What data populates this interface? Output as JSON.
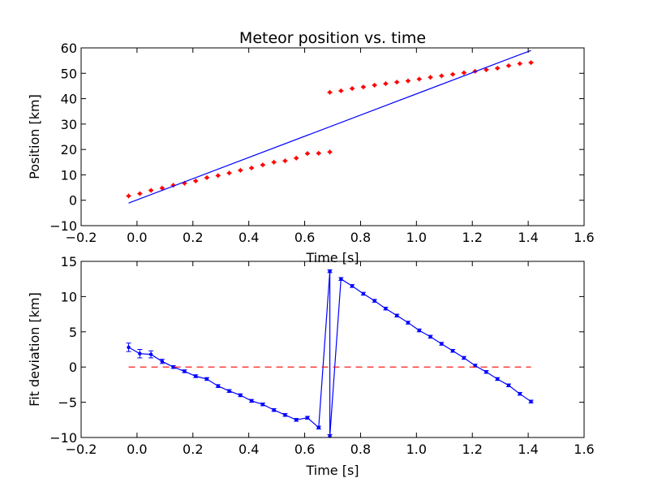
{
  "chart_data": [
    {
      "type": "scatter",
      "title": "Meteor position vs. time",
      "xlabel": "Time [s]",
      "ylabel": "Position [km]",
      "xlim": [
        -0.2,
        1.6
      ],
      "ylim": [
        -10,
        60
      ],
      "xticks": [
        "−0.2",
        "0.0",
        "0.2",
        "0.4",
        "0.6",
        "0.8",
        "1.0",
        "1.2",
        "1.4",
        "1.6"
      ],
      "yticks": [
        "−10",
        "0",
        "10",
        "20",
        "30",
        "40",
        "50",
        "60"
      ],
      "grid": false,
      "colors": {
        "points": "#ff0000",
        "fit": "#0000ff"
      },
      "series": [
        {
          "kind": "points",
          "x": [
            -0.03,
            0.01,
            0.05,
            0.09,
            0.13,
            0.17,
            0.21,
            0.25,
            0.29,
            0.33,
            0.37,
            0.41,
            0.45,
            0.49,
            0.53,
            0.57,
            0.61,
            0.65,
            0.69,
            0.69,
            0.73,
            0.77,
            0.81,
            0.85,
            0.89,
            0.93,
            0.97,
            1.01,
            1.05,
            1.09,
            1.13,
            1.17,
            1.21,
            1.25,
            1.29,
            1.33,
            1.37,
            1.41
          ],
          "y": [
            1.7,
            2.6,
            3.9,
            4.8,
            5.9,
            6.7,
            7.6,
            8.9,
            9.7,
            10.7,
            11.8,
            12.7,
            13.9,
            15.0,
            15.5,
            16.6,
            18.4,
            18.5,
            19.0,
            42.5,
            43.1,
            44.0,
            44.6,
            45.3,
            45.9,
            46.5,
            47.0,
            47.7,
            48.4,
            49.0,
            49.6,
            50.2,
            50.8,
            51.4,
            52.0,
            53.0,
            53.8,
            54.2
          ]
        },
        {
          "kind": "line",
          "x": [
            -0.03,
            1.41
          ],
          "y": [
            -1.1,
            59.0
          ]
        }
      ]
    },
    {
      "type": "line",
      "xlabel": "Time [s]",
      "ylabel": "Fit deviation [km]",
      "xlim": [
        -0.2,
        1.6
      ],
      "ylim": [
        -10,
        15
      ],
      "xticks": [
        "−0.2",
        "0.0",
        "0.2",
        "0.4",
        "0.6",
        "0.8",
        "1.0",
        "1.2",
        "1.4",
        "1.6"
      ],
      "yticks": [
        "−10",
        "−5",
        "0",
        "5",
        "10",
        "15"
      ],
      "grid": false,
      "colors": {
        "deviation": "#0000ff",
        "zero": "#ff0000"
      },
      "series": [
        {
          "kind": "errorline",
          "x": [
            -0.03,
            0.01,
            0.05,
            0.09,
            0.13,
            0.17,
            0.21,
            0.25,
            0.29,
            0.33,
            0.37,
            0.41,
            0.45,
            0.49,
            0.53,
            0.57,
            0.61,
            0.65,
            0.69,
            0.69,
            0.73,
            0.77,
            0.81,
            0.85,
            0.89,
            0.93,
            0.97,
            1.01,
            1.05,
            1.09,
            1.13,
            1.17,
            1.21,
            1.25,
            1.29,
            1.33,
            1.37,
            1.41
          ],
          "y": [
            2.8,
            1.9,
            1.8,
            0.8,
            0.0,
            -0.6,
            -1.3,
            -1.7,
            -2.7,
            -3.4,
            -4.0,
            -4.8,
            -5.3,
            -6.1,
            -6.8,
            -7.5,
            -7.2,
            -8.6,
            13.6,
            -9.8,
            12.5,
            11.5,
            10.4,
            9.4,
            8.3,
            7.3,
            6.3,
            5.2,
            4.3,
            3.3,
            2.3,
            1.3,
            0.2,
            -0.7,
            -1.7,
            -2.6,
            -3.8,
            -4.9
          ],
          "err": [
            0.6,
            0.6,
            0.5,
            0.3,
            0.2,
            0.2,
            0.2,
            0.2,
            0.2,
            0.2,
            0.2,
            0.2,
            0.2,
            0.2,
            0.2,
            0.2,
            0.2,
            0.2,
            0.2,
            0.2,
            0.2,
            0.2,
            0.2,
            0.2,
            0.2,
            0.2,
            0.2,
            0.2,
            0.2,
            0.2,
            0.2,
            0.2,
            0.2,
            0.2,
            0.2,
            0.2,
            0.2,
            0.2
          ]
        },
        {
          "kind": "dashed",
          "x": [
            -0.03,
            1.41
          ],
          "y": [
            0,
            0
          ]
        }
      ]
    }
  ]
}
